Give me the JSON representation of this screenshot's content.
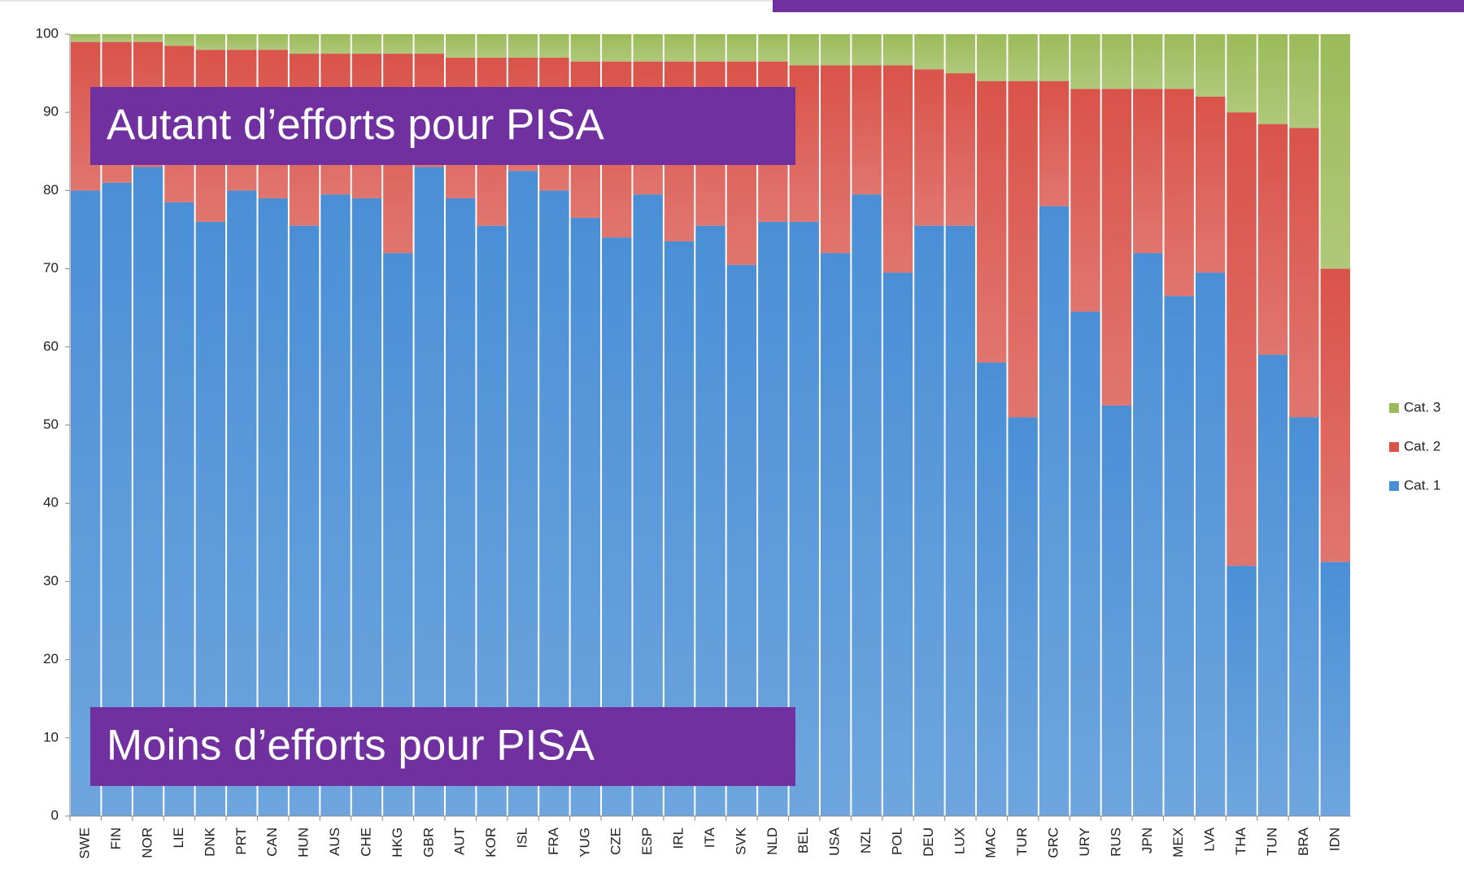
{
  "chart_data": {
    "type": "stacked_bar",
    "categories": [
      "SWE",
      "FIN",
      "NOR",
      "LIE",
      "DNK",
      "PRT",
      "CAN",
      "HUN",
      "AUS",
      "CHE",
      "HKG",
      "GBR",
      "AUT",
      "KOR",
      "ISL",
      "FRA",
      "YUG",
      "CZE",
      "ESP",
      "IRL",
      "ITA",
      "SVK",
      "NLD",
      "BEL",
      "USA",
      "NZL",
      "POL",
      "DEU",
      "LUX",
      "MAC",
      "TUR",
      "GRC",
      "URY",
      "RUS",
      "JPN",
      "MEX",
      "LVA",
      "THA",
      "TUN",
      "BRA",
      "IDN"
    ],
    "series": [
      {
        "name": "Cat. 1",
        "color": "#4a8fd6",
        "values": [
          80,
          81,
          83,
          78.5,
          76,
          80,
          79,
          75.5,
          79.5,
          79,
          72,
          83,
          79,
          75.5,
          82.5,
          80,
          76.5,
          74,
          79.5,
          73.5,
          75.5,
          70.5,
          76,
          76,
          72,
          79.5,
          69.5,
          75.5,
          75.5,
          58,
          51,
          78,
          64.5,
          52.5,
          72,
          66.5,
          69.5,
          32,
          59,
          51,
          32.5
        ]
      },
      {
        "name": "Cat. 2",
        "color": "#d9534a",
        "values": [
          19,
          18,
          16,
          20,
          22,
          18,
          19,
          22,
          18,
          18.5,
          25.5,
          14.5,
          18,
          21.5,
          14.5,
          17,
          20,
          22.5,
          17,
          23,
          21,
          26,
          20.5,
          20,
          24,
          16.5,
          26.5,
          20,
          19.5,
          36,
          43,
          16,
          28.5,
          40.5,
          21,
          26.5,
          22.5,
          58,
          29.5,
          37,
          37.5
        ]
      },
      {
        "name": "Cat. 3",
        "color": "#9bbb59",
        "values": [
          1,
          1,
          1,
          1.5,
          2,
          2,
          2,
          2.5,
          2.5,
          2.5,
          2.5,
          2.5,
          3,
          3,
          3,
          3,
          3.5,
          3.5,
          3.5,
          3.5,
          3.5,
          3.5,
          3.5,
          4,
          4,
          4,
          4,
          4.5,
          5,
          6,
          6,
          6,
          7,
          7,
          7,
          7,
          8,
          10,
          11.5,
          12,
          30
        ]
      }
    ],
    "ylim": [
      0,
      100
    ],
    "yticks": [
      0,
      10,
      20,
      30,
      40,
      50,
      60,
      70,
      80,
      90,
      100
    ],
    "annotations": [
      "Autant d’efforts pour PISA",
      "Moins d’efforts pour PISA"
    ],
    "legend": "right"
  }
}
